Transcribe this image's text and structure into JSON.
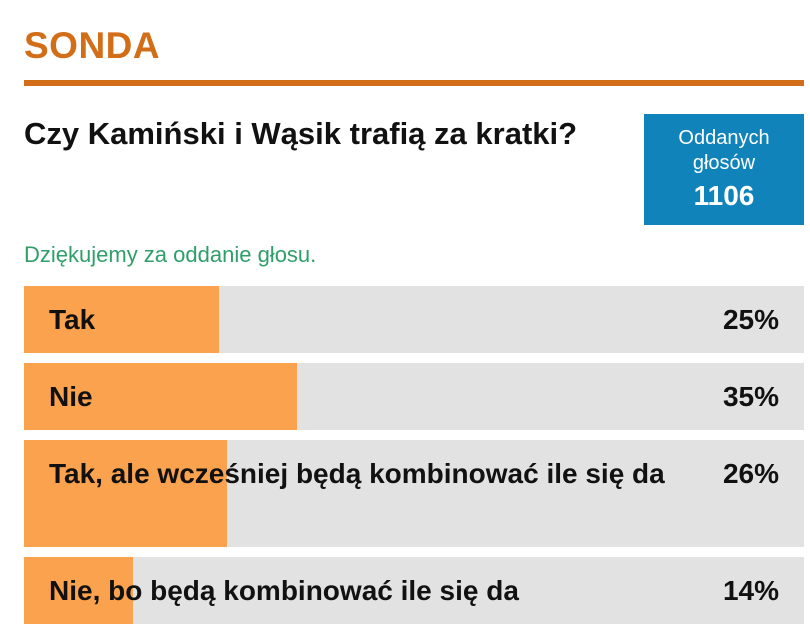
{
  "poll": {
    "header": "SONDA",
    "question": "Czy Kamiński i Wąsik trafią za kratki?",
    "votes_label": "Oddanych głosów",
    "votes_count": "1106",
    "thanks": "Dziękujemy za oddanie głosu.",
    "options": [
      {
        "label": "Tak",
        "percent_text": "25%",
        "percent": 25
      },
      {
        "label": "Nie",
        "percent_text": "35%",
        "percent": 35
      },
      {
        "label": "Tak, ale wcześniej będą kombinować ile się da",
        "percent_text": "26%",
        "percent": 26
      },
      {
        "label": "Nie, bo będą kombinować ile się da",
        "percent_text": "14%",
        "percent": 14
      }
    ]
  },
  "colors": {
    "accent": "#d26e17",
    "votes_box": "#1183bb",
    "thanks_text": "#2f9f6a",
    "bar_fill": "#fba24f",
    "bar_track": "#e2e2e2"
  }
}
